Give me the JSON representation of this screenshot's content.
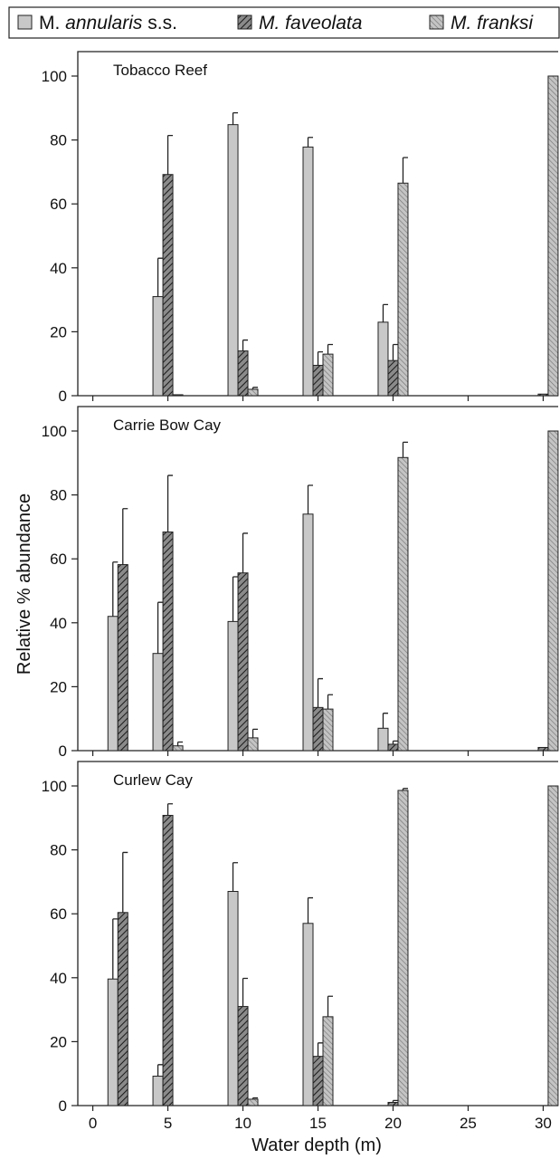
{
  "chart_data": {
    "type": "bar",
    "legend": {
      "placement": "top",
      "entries": [
        {
          "genus": "M.",
          "species": "annularis",
          "suffix": " s.s."
        },
        {
          "genus": "M.",
          "species": "faveolata",
          "suffix": ""
        },
        {
          "genus": "M.",
          "species": "franksi",
          "suffix": ""
        }
      ]
    },
    "xlabel": "Water depth (m)",
    "ylabel": "Relative % abundance",
    "xlim": [
      -1,
      31
    ],
    "ylim": [
      0,
      105
    ],
    "xticks": [
      0,
      5,
      10,
      15,
      20,
      25,
      30
    ],
    "yticks": [
      0,
      20,
      40,
      60,
      80,
      100
    ],
    "colors": {
      "annularis": "#c8c8c8",
      "faveolata": "#7a7a7a",
      "franksi": "#b8b8b8"
    },
    "panels": [
      {
        "title": "Tobacco Reef",
        "groups": [
          {
            "depth": 5,
            "values": [
              31,
              69.2,
              0.3
            ],
            "errors": [
              12,
              12.2,
              0
            ]
          },
          {
            "depth": 10,
            "values": [
              84.8,
              14,
              2
            ],
            "errors": [
              3.7,
              3.4,
              0.6
            ]
          },
          {
            "depth": 15,
            "values": [
              77.8,
              9.5,
              13
            ],
            "errors": [
              3,
              4.2,
              3
            ]
          },
          {
            "depth": 20,
            "values": [
              23,
              11,
              66.5
            ],
            "errors": [
              5.5,
              5,
              8
            ]
          },
          {
            "depth": 30,
            "values": [
              0,
              0.5,
              100
            ],
            "errors": [
              0,
              0,
              0
            ]
          }
        ]
      },
      {
        "title": "Carrie Bow Cay",
        "groups": [
          {
            "depth": 2,
            "values": [
              42,
              58.2,
              0
            ],
            "errors": [
              17,
              17.5,
              0
            ]
          },
          {
            "depth": 5,
            "values": [
              30.4,
              68.4,
              1.5
            ],
            "errors": [
              16,
              17.7,
              1.2
            ]
          },
          {
            "depth": 10,
            "values": [
              40.4,
              55.6,
              4
            ],
            "errors": [
              14,
              12.4,
              2.7
            ]
          },
          {
            "depth": 15,
            "values": [
              74,
              13.5,
              13
            ],
            "errors": [
              9,
              9,
              4.5
            ]
          },
          {
            "depth": 20,
            "values": [
              7,
              2,
              91.7
            ],
            "errors": [
              4.7,
              1,
              4.8
            ]
          },
          {
            "depth": 30,
            "values": [
              0,
              1,
              100
            ],
            "errors": [
              0,
              0,
              0
            ]
          }
        ]
      },
      {
        "title": "Curlew Cay",
        "groups": [
          {
            "depth": 2,
            "values": [
              39.6,
              60.4,
              0
            ],
            "errors": [
              18.8,
              18.8,
              0
            ]
          },
          {
            "depth": 5,
            "values": [
              9.2,
              90.8,
              0
            ],
            "errors": [
              3.6,
              3.6,
              0
            ]
          },
          {
            "depth": 10,
            "values": [
              67,
              31,
              2
            ],
            "errors": [
              9,
              8.8,
              0.4
            ]
          },
          {
            "depth": 15,
            "values": [
              57,
              15.4,
              27.8
            ],
            "errors": [
              8,
              4.2,
              6.4
            ]
          },
          {
            "depth": 20,
            "values": [
              0,
              1,
              98.6
            ],
            "errors": [
              0,
              0.6,
              0.6
            ]
          },
          {
            "depth": 30,
            "values": [
              0,
              0,
              100
            ],
            "errors": [
              0,
              0,
              0
            ]
          }
        ]
      }
    ]
  }
}
